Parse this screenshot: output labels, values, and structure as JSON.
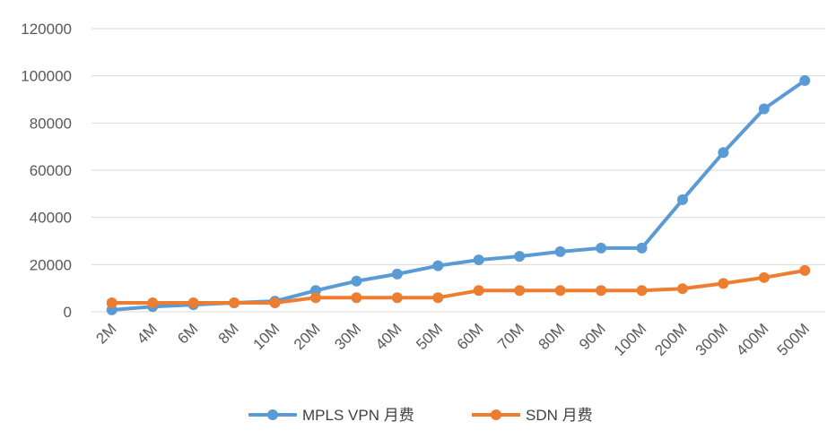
{
  "chart_data": {
    "type": "line",
    "categories": [
      "2M",
      "4M",
      "6M",
      "8M",
      "10M",
      "20M",
      "30M",
      "40M",
      "50M",
      "60M",
      "70M",
      "80M",
      "90M",
      "100M",
      "200M",
      "300M",
      "400M",
      "500M"
    ],
    "series": [
      {
        "name": "MPLS VPN 月费",
        "color": "#5b9bd5",
        "values": [
          800,
          2200,
          3000,
          3800,
          4500,
          9000,
          13000,
          16000,
          19500,
          22000,
          23500,
          25500,
          27000,
          27000,
          47500,
          67500,
          86000,
          98000
        ]
      },
      {
        "name": "SDN 月费",
        "color": "#ed7d31",
        "values": [
          3800,
          3800,
          3800,
          3800,
          3800,
          6000,
          6000,
          6000,
          6000,
          9000,
          9000,
          9000,
          9000,
          9000,
          9800,
          12000,
          14500,
          17500
        ]
      }
    ],
    "yticks": [
      "0",
      "20000",
      "40000",
      "60000",
      "80000",
      "100000",
      "120000"
    ],
    "ylim": [
      0,
      120000
    ],
    "grid": true,
    "legend": "bottom"
  }
}
